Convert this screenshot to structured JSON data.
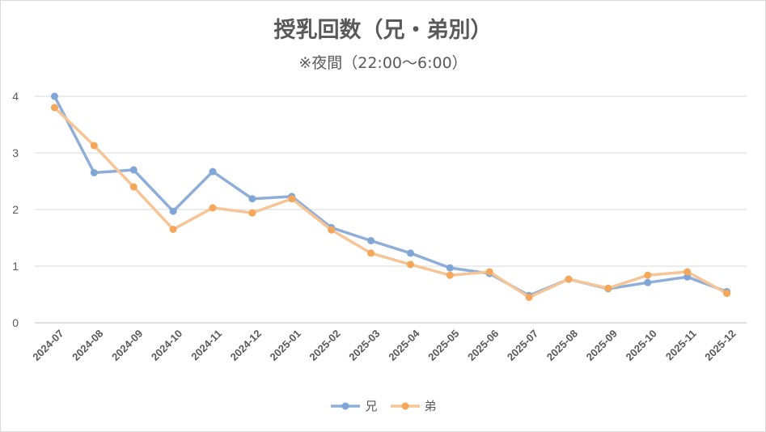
{
  "chart_data": {
    "type": "line",
    "title": "授乳回数（兄・弟別）",
    "subtitle": "※夜間（22:00～6:00）",
    "categories": [
      "2024-07",
      "2024-08",
      "2024-09",
      "2024-10",
      "2024-11",
      "2024-12",
      "2025-01",
      "2025-02",
      "2025-03",
      "2025-04",
      "2025-05",
      "2025-06",
      "2025-07",
      "2025-08",
      "2025-09",
      "2025-10",
      "2025-11",
      "2025-12"
    ],
    "series": [
      {
        "name": "兄",
        "color": "#7fa6d6",
        "values": [
          4.0,
          2.65,
          2.7,
          1.97,
          2.67,
          2.19,
          2.23,
          1.68,
          1.45,
          1.23,
          0.97,
          0.87,
          0.48,
          0.77,
          0.6,
          0.71,
          0.81,
          0.55
        ]
      },
      {
        "name": "弟",
        "color": "#f4a65a",
        "values": [
          3.8,
          3.13,
          2.4,
          1.65,
          2.03,
          1.94,
          2.19,
          1.64,
          1.23,
          1.03,
          0.84,
          0.9,
          0.45,
          0.77,
          0.61,
          0.84,
          0.9,
          0.52
        ]
      }
    ],
    "yticks": [
      0,
      1,
      2,
      3,
      4
    ],
    "ylim": [
      0,
      4
    ],
    "grid": true,
    "legend_position": "bottom"
  }
}
